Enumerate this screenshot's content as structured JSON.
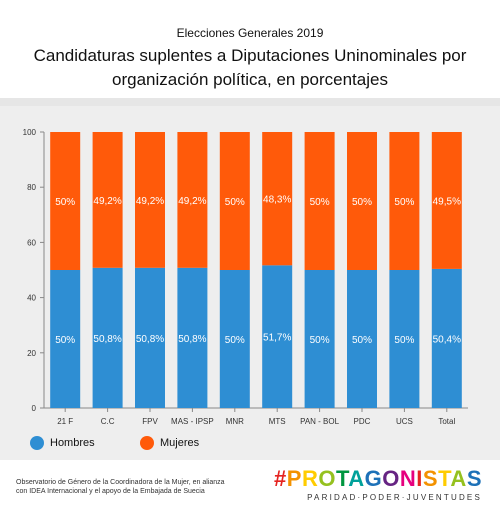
{
  "header": {
    "kicker": "Elecciones Generales 2019",
    "title_line1": "Candidaturas suplentes a Diputaciones  Uninominales por",
    "title_line2": "organización política, en  porcentajes"
  },
  "colors": {
    "hombres": "#2e8ed3",
    "mujeres": "#ff5a0a"
  },
  "chart_data": {
    "type": "bar",
    "stacked": true,
    "categories": [
      "21 F",
      "C.C",
      "FPV",
      "MAS - IPSP",
      "MNR",
      "MTS",
      "PAN - BOL",
      "PDC",
      "UCS",
      "Total"
    ],
    "series": [
      {
        "name": "Hombres",
        "values": [
          50,
          50.8,
          50.8,
          50.8,
          50,
          51.7,
          50,
          50,
          50,
          50.4
        ],
        "labels": [
          "50%",
          "50,8%",
          "50,8%",
          "50,8%",
          "50%",
          "51,7%",
          "50%",
          "50%",
          "50%",
          "50,4%"
        ]
      },
      {
        "name": "Mujeres",
        "values": [
          50,
          49.2,
          49.2,
          49.2,
          50,
          48.3,
          50,
          50,
          50,
          49.5
        ],
        "labels": [
          "50%",
          "49,2%",
          "49,2%",
          "49,2%",
          "50%",
          "48,3%",
          "50%",
          "50%",
          "50%",
          "49,5%"
        ]
      }
    ],
    "yticks": [
      "0",
      "20",
      "40",
      "60",
      "80",
      "100"
    ],
    "ylim": [
      0,
      100
    ],
    "grid": false,
    "legend": "bottom-left"
  },
  "legend": {
    "hombres": "Hombres",
    "mujeres": "Mujeres"
  },
  "footnote": {
    "line1": "Observatorio de Género de la Coordinadora de la Mujer, en alianza",
    "line2": "con IDEA Internacional y el apoyo de la Embajada de Suecia"
  },
  "brand": {
    "logo": "#PROTAGONISTAS",
    "tagline": "PARIDAD·PODER·JUVENTUDES"
  }
}
